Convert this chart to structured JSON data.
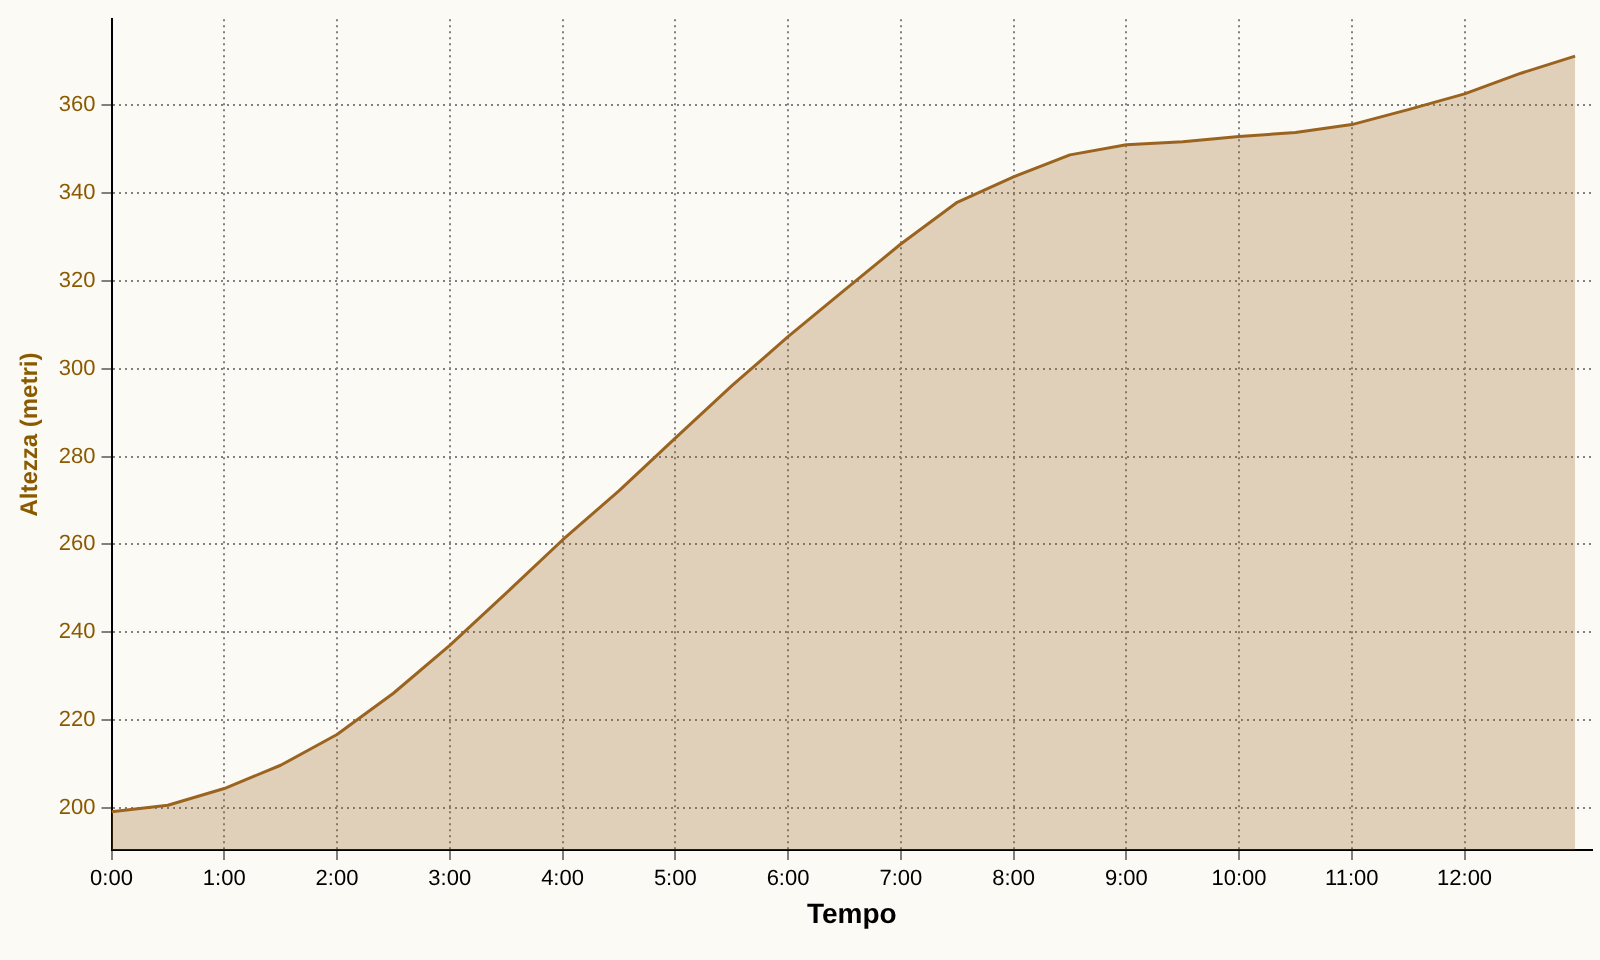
{
  "chart_data": {
    "type": "area",
    "xlabel": "Tempo",
    "ylabel": "Altezza (metri)",
    "x": [
      0,
      0.5,
      1,
      1.5,
      2,
      2.5,
      3,
      3.5,
      4,
      4.5,
      5,
      5.5,
      6,
      6.5,
      7,
      7.5,
      8,
      8.5,
      9,
      9.5,
      10,
      10.5,
      11,
      11.5,
      12,
      12.5,
      12.98
    ],
    "series": [
      {
        "color": "#9a6420",
        "values": [
          199.1,
          200.6,
          204.4,
          209.7,
          216.7,
          226.1,
          237.0,
          248.9,
          261.0,
          272.2,
          284.2,
          296.1,
          307.3,
          317.9,
          328.4,
          337.9,
          343.7,
          348.7,
          351.0,
          351.7,
          352.9,
          353.8,
          355.6,
          359.0,
          362.6,
          367.3,
          371.2
        ]
      }
    ],
    "xlim": [
      0,
      13.13
    ],
    "ylim": [
      190.4,
      379.6
    ],
    "xticks": [
      {
        "value": 0,
        "label": "0:00"
      },
      {
        "value": 1,
        "label": "1:00"
      },
      {
        "value": 2,
        "label": "2:00"
      },
      {
        "value": 3,
        "label": "3:00"
      },
      {
        "value": 4,
        "label": "4:00"
      },
      {
        "value": 5,
        "label": "5:00"
      },
      {
        "value": 6,
        "label": "6:00"
      },
      {
        "value": 7,
        "label": "7:00"
      },
      {
        "value": 8,
        "label": "8:00"
      },
      {
        "value": 9,
        "label": "9:00"
      },
      {
        "value": 10,
        "label": "10:00"
      },
      {
        "value": 11,
        "label": "11:00"
      },
      {
        "value": 12,
        "label": "12:00"
      }
    ],
    "yticks": [
      200,
      220,
      240,
      260,
      280,
      300,
      320,
      340,
      360
    ],
    "grid": true,
    "legend": false,
    "marker": "none"
  }
}
